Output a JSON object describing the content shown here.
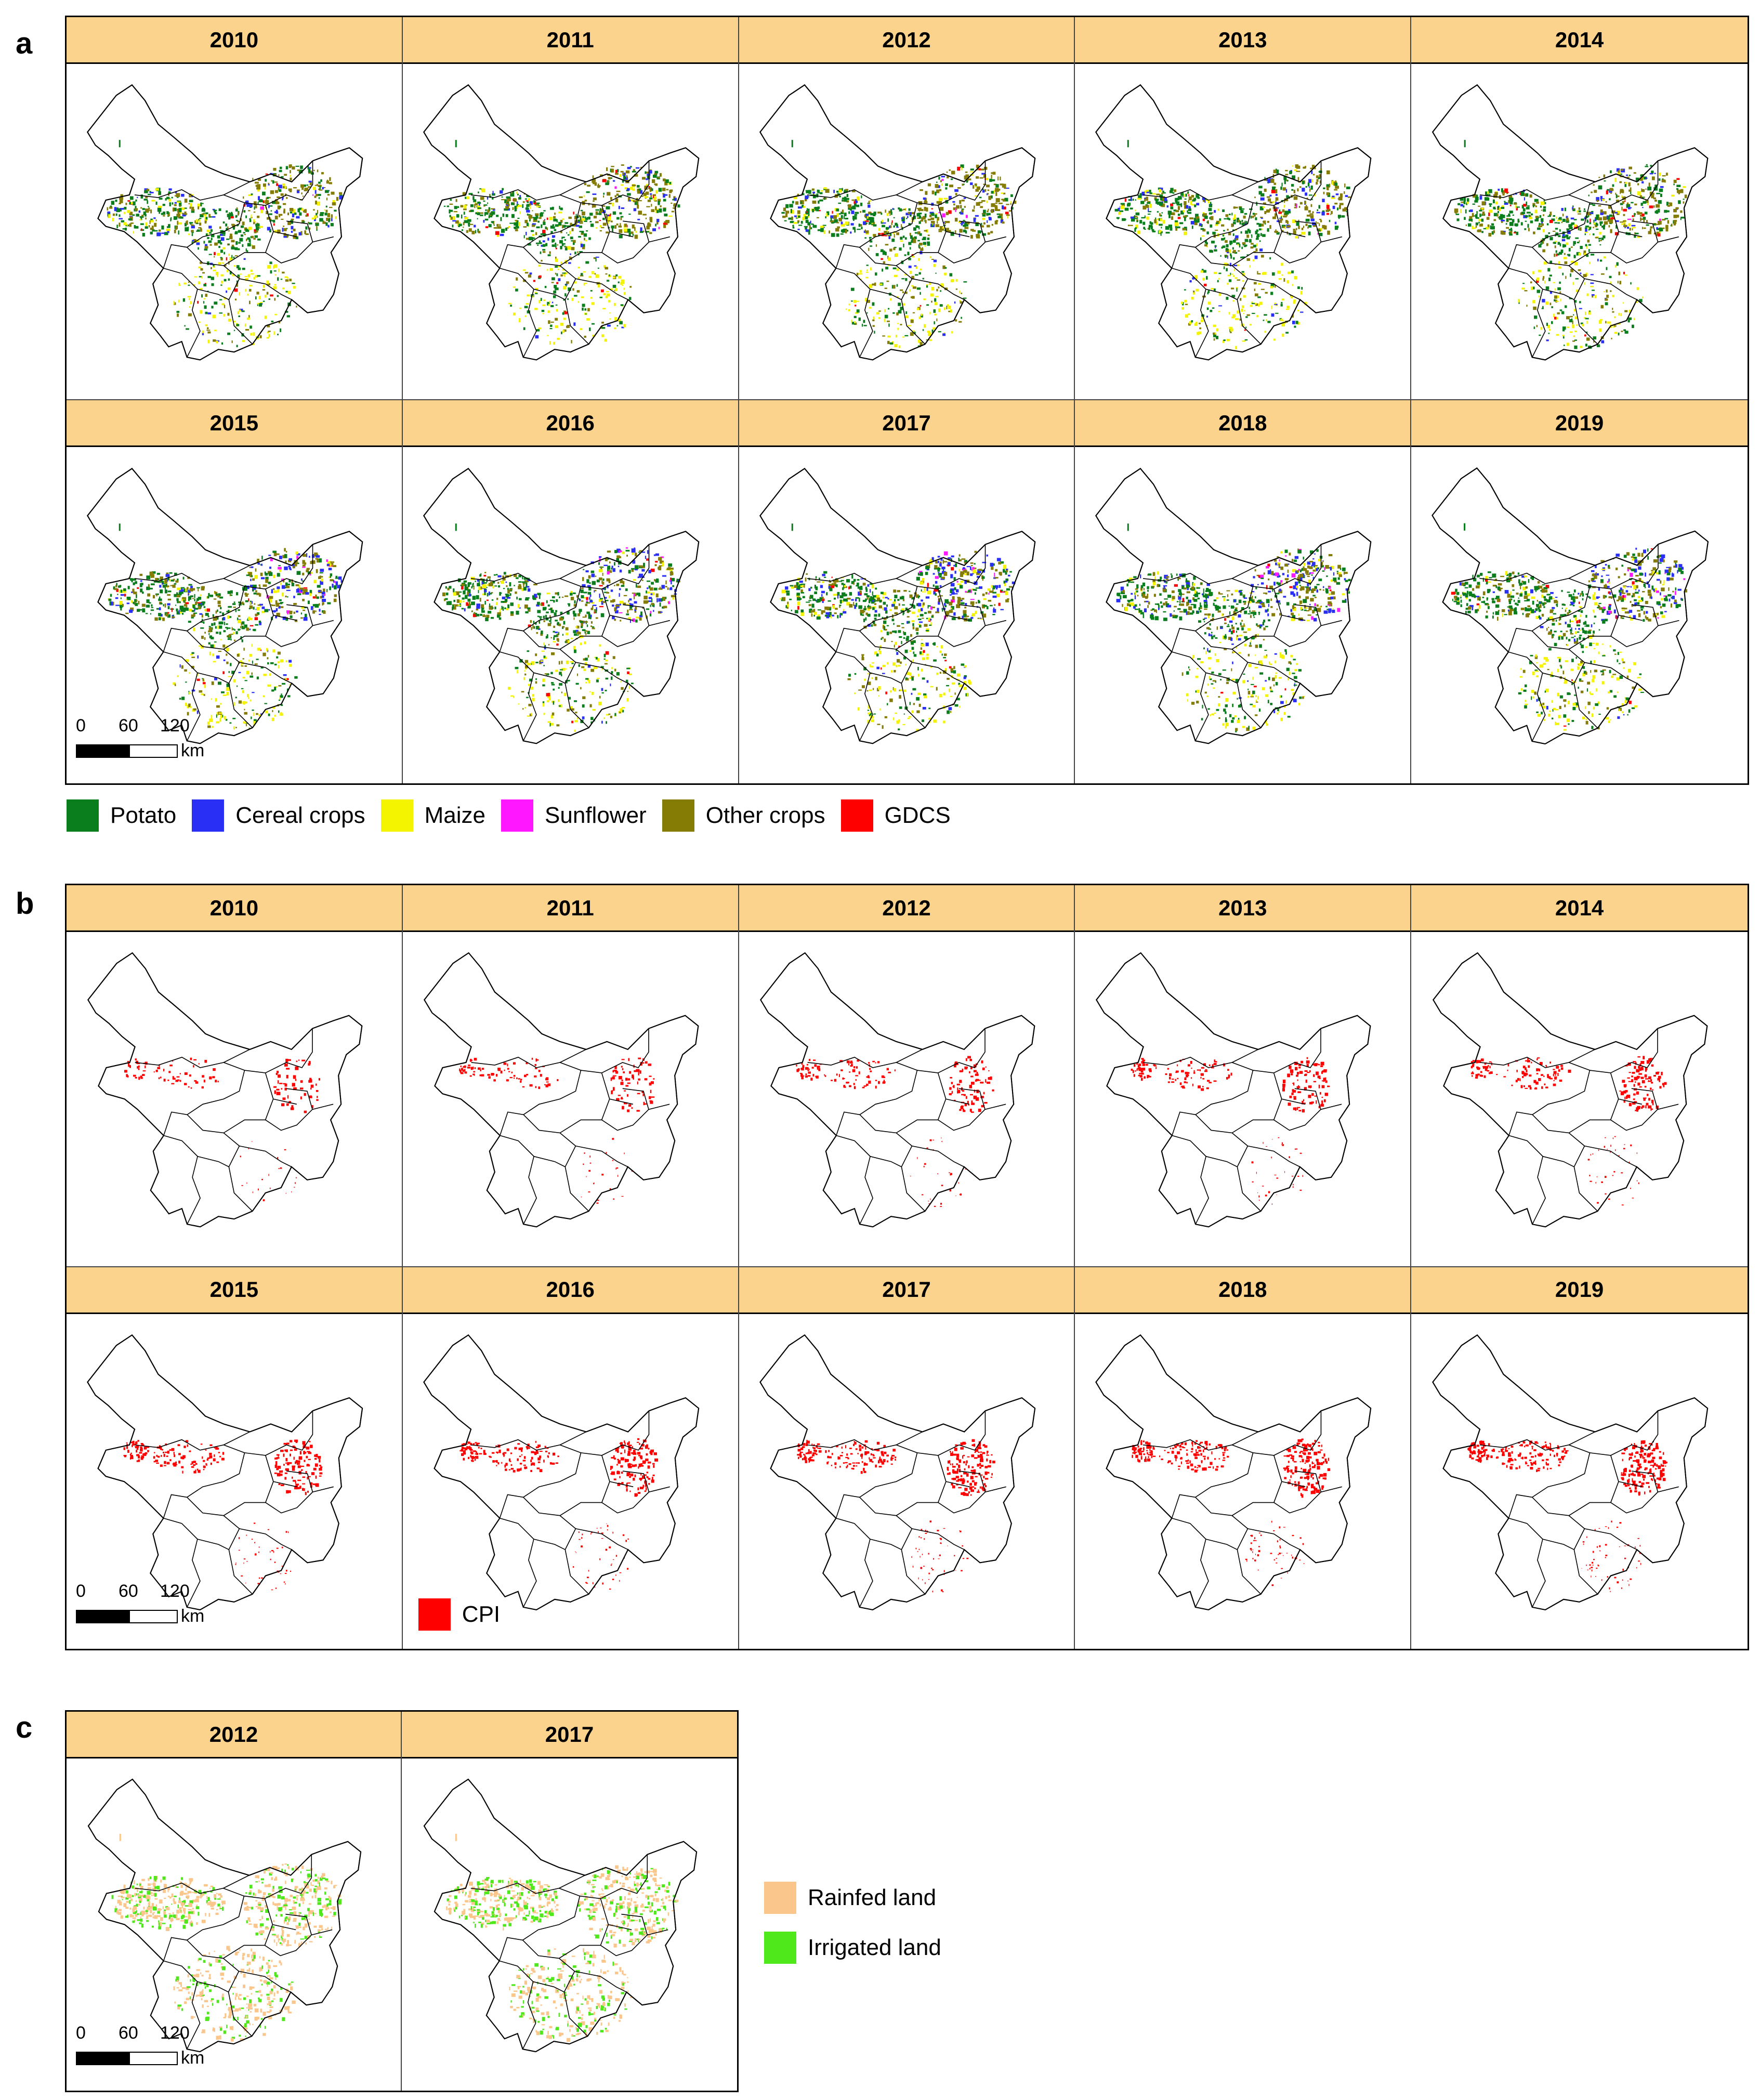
{
  "panels": {
    "a": {
      "label": "a",
      "years": [
        "2010",
        "2011",
        "2012",
        "2013",
        "2014",
        "2015",
        "2016",
        "2017",
        "2018",
        "2019"
      ],
      "scale": {
        "ticks": [
          "0",
          "60",
          "120"
        ],
        "unit": "km"
      },
      "legend": [
        {
          "label": "Potato",
          "color": "#0a7d1c"
        },
        {
          "label": "Cereal crops",
          "color": "#2a2ff5"
        },
        {
          "label": "Maize",
          "color": "#f4f400"
        },
        {
          "label": "Sunflower",
          "color": "#ff18ff"
        },
        {
          "label": "Other crops",
          "color": "#857c05"
        },
        {
          "label": "GDCS",
          "color": "#ff0000"
        }
      ]
    },
    "b": {
      "label": "b",
      "years": [
        "2010",
        "2011",
        "2012",
        "2013",
        "2014",
        "2015",
        "2016",
        "2017",
        "2018",
        "2019"
      ],
      "scale": {
        "ticks": [
          "0",
          "60",
          "120"
        ],
        "unit": "km"
      },
      "legend": [
        {
          "label": "CPI",
          "color": "#ff0000"
        }
      ]
    },
    "c": {
      "label": "c",
      "years": [
        "2012",
        "2017"
      ],
      "scale": {
        "ticks": [
          "0",
          "60",
          "120"
        ],
        "unit": "km"
      },
      "legend": [
        {
          "label": "Rainfed land",
          "color": "#fbc68c"
        },
        {
          "label": "Irrigated land",
          "color": "#4fe81a"
        }
      ]
    }
  },
  "colors": {
    "header": "#fcd38c",
    "cpi": "#ff0000"
  }
}
